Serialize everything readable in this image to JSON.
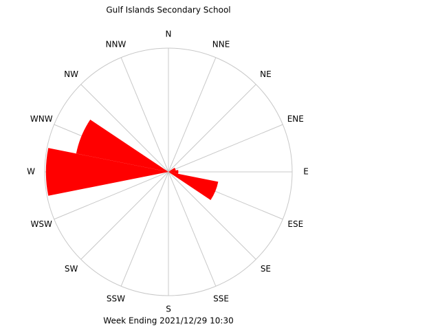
{
  "chart_data": {
    "type": "windrose",
    "title": "Gulf Islands Secondary School",
    "subtitle": "Week Ending 2021/12/29 10:30",
    "categories": [
      "N",
      "NNE",
      "NE",
      "ENE",
      "E",
      "ESE",
      "SE",
      "SSE",
      "S",
      "SSW",
      "SW",
      "WSW",
      "W",
      "WNW",
      "NW",
      "NNW"
    ],
    "values": [
      0,
      0,
      0,
      6,
      8,
      41,
      0,
      0,
      0,
      0,
      0,
      0,
      99,
      76,
      0,
      0
    ],
    "color": "#ff0000",
    "rlim": [
      0,
      100
    ],
    "grid": true
  }
}
